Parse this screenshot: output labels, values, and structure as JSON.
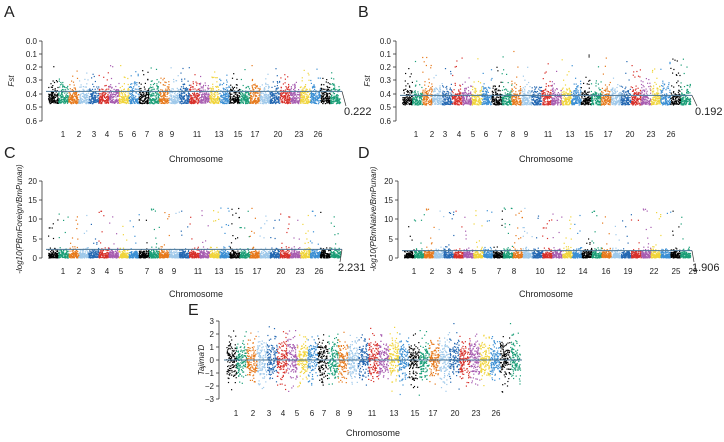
{
  "chart_data": [
    {
      "panel": "A",
      "type": "scatter",
      "ylabel": "Fst",
      "xlabel": "Chromosome",
      "ylim": [
        0,
        0.6
      ],
      "yticks": [
        "0.0",
        "0.1",
        "0.2",
        "0.3",
        "0.4",
        "0.5",
        "0.6"
      ],
      "xticks": [
        "1",
        "2",
        "3",
        "4",
        "5",
        "6",
        "7",
        "8",
        "9",
        "11",
        "13",
        "15",
        "17",
        "20",
        "23",
        "26"
      ],
      "n_chromosomes": 29,
      "threshold": 0.222,
      "threshold_label": "0.222",
      "base_mean": 0.13,
      "spread": 0.06,
      "max_peak": 0.42
    },
    {
      "panel": "B",
      "type": "scatter",
      "ylabel": "Fst",
      "xlabel": "Chromosome",
      "ylim": [
        0,
        0.6
      ],
      "yticks": [
        "0.0",
        "0.1",
        "0.2",
        "0.3",
        "0.4",
        "0.5",
        "0.6"
      ],
      "xticks": [
        "1",
        "2",
        "3",
        "4",
        "5",
        "6",
        "7",
        "8",
        "9",
        "11",
        "13",
        "15",
        "17",
        "20",
        "23",
        "26"
      ],
      "n_chromosomes": 29,
      "threshold": 0.192,
      "threshold_label": "0.192",
      "base_mean": 0.12,
      "spread": 0.06,
      "max_peak": 0.57
    },
    {
      "panel": "C",
      "type": "scatter",
      "ylabel": "-log10(PBmForeign/BmPunan)",
      "xlabel": "Chromosome",
      "ylim": [
        0,
        20
      ],
      "yticks": [
        "0",
        "5",
        "10",
        "15",
        "20"
      ],
      "xticks": [
        "1",
        "2",
        "3",
        "4",
        "5",
        "7",
        "8",
        "9",
        "11",
        "13",
        "15",
        "17",
        "20",
        "23",
        "26"
      ],
      "n_chromosomes": 29,
      "threshold": 2.231,
      "threshold_label": "2.231",
      "base_mean": 1.0,
      "spread": 1.0,
      "max_peak": 13
    },
    {
      "panel": "D",
      "type": "scatter",
      "ylabel": "-log10(PBmNative/BmPunan)",
      "xlabel": "Chromosome",
      "ylim": [
        0,
        20
      ],
      "yticks": [
        "0",
        "5",
        "10",
        "15",
        "20"
      ],
      "xticks": [
        "1",
        "2",
        "3",
        "4",
        "5",
        "7",
        "8",
        "10",
        "12",
        "14",
        "16",
        "19",
        "22",
        "25",
        "29"
      ],
      "n_chromosomes": 29,
      "threshold": 1.906,
      "threshold_label": "1.906",
      "base_mean": 1.0,
      "spread": 1.0,
      "max_peak": 13
    },
    {
      "panel": "E",
      "type": "scatter",
      "ylabel": "Tajima'D",
      "xlabel": "Chromosome",
      "ylim": [
        -3,
        3
      ],
      "yticks": [
        "3",
        "2",
        "1",
        "0",
        "−1",
        "−2",
        "−3"
      ],
      "xticks": [
        "1",
        "2",
        "3",
        "4",
        "5",
        "6",
        "7",
        "8",
        "9",
        "11",
        "13",
        "15",
        "17",
        "20",
        "23",
        "26"
      ],
      "n_chromosomes": 29,
      "threshold": 0,
      "threshold_label": "",
      "base_mean": 0,
      "spread": 0.8,
      "max_peak": 2.4
    }
  ],
  "colors": [
    "#000000",
    "#1b9e77",
    "#e6791b",
    "#9fc9ea",
    "#2468b2",
    "#d7302a",
    "#a75cb0",
    "#f0d43a",
    "#3b8fd4"
  ],
  "threshold_color": "#4a7596"
}
